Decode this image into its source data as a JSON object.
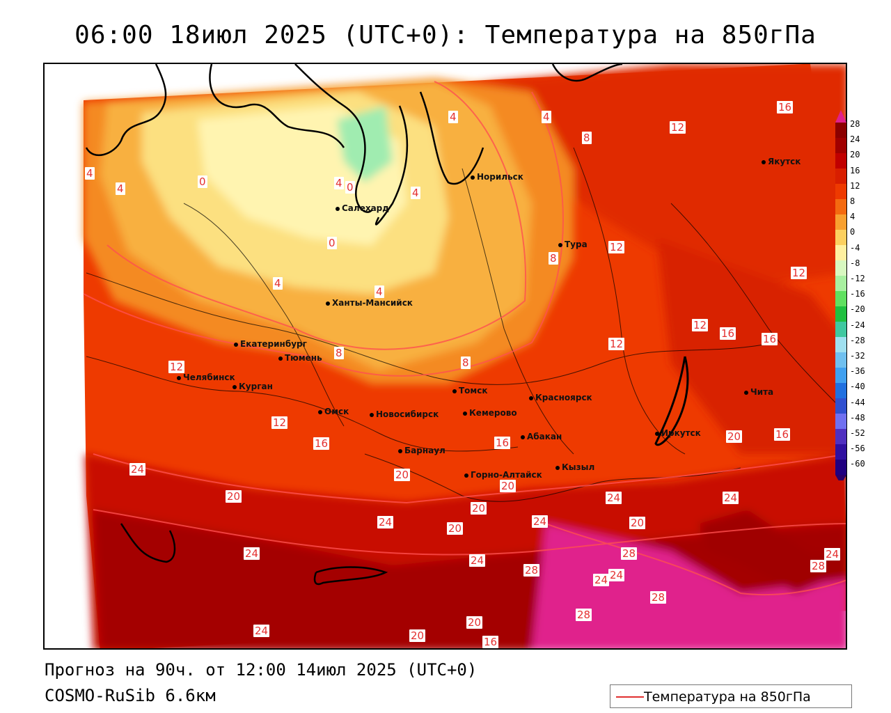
{
  "header": {
    "title": "06:00 18июл 2025 (UTC+0): Температура на 850гПа"
  },
  "footer": {
    "forecast": "Прогноз на 90ч. от 12:00 14июл 2025 (UTC+0)",
    "model": "COSMO-RuSib 6.6км"
  },
  "legend": {
    "label": "Температура на 850гПа",
    "line_color": "#e03030"
  },
  "colorbar": {
    "labels": [
      "28",
      "24",
      "20",
      "16",
      "12",
      "8",
      "4",
      "0",
      "-4",
      "-8",
      "-12",
      "-16",
      "-20",
      "-24",
      "-28",
      "-32",
      "-36",
      "-40",
      "-44",
      "-48",
      "-52",
      "-56",
      "-60"
    ],
    "colors": [
      "#8b0000",
      "#a00000",
      "#c00000",
      "#d81e00",
      "#ee3a00",
      "#f46a10",
      "#f8a030",
      "#fcd060",
      "#fff0a0",
      "#d8f8c0",
      "#a8f0a0",
      "#60e060",
      "#20c040",
      "#40c8a0",
      "#a0e0f0",
      "#70c0f0",
      "#40a0f0",
      "#2070e0",
      "#3050d0",
      "#7070f0",
      "#5030c0",
      "#3010a0",
      "#200080"
    ],
    "top_color": "#e0208c"
  },
  "cities": [
    {
      "name": "Норильск"
    },
    {
      "name": "Якутск"
    },
    {
      "name": "Салехард"
    },
    {
      "name": "Тура"
    },
    {
      "name": "Ханты-Мансийск"
    },
    {
      "name": "Екатеринбург"
    },
    {
      "name": "Тюмень"
    },
    {
      "name": "Челябинск"
    },
    {
      "name": "Курган"
    },
    {
      "name": "Омск"
    },
    {
      "name": "Новосибирск"
    },
    {
      "name": "Томск"
    },
    {
      "name": "Кемерово"
    },
    {
      "name": "Красноярск"
    },
    {
      "name": "Барнаул"
    },
    {
      "name": "Абакан"
    },
    {
      "name": "Горно-Алтайск"
    },
    {
      "name": "Кызыл"
    },
    {
      "name": "Иркутск"
    },
    {
      "name": "Чита"
    }
  ],
  "isotherm_labels": [
    "16",
    "12",
    "4",
    "4",
    "8",
    "0",
    "4",
    "4",
    "0",
    "4",
    "0",
    "4",
    "4",
    "12",
    "8",
    "12",
    "12",
    "4",
    "12",
    "16",
    "16",
    "12",
    "8",
    "8",
    "16",
    "12",
    "16",
    "20",
    "16",
    "20",
    "20",
    "24",
    "20",
    "20",
    "24",
    "24",
    "24",
    "20",
    "24",
    "24",
    "20",
    "28",
    "28",
    "24",
    "24",
    "28",
    "28",
    "28",
    "24",
    "24",
    "20",
    "24",
    "20",
    "16"
  ],
  "map": {
    "projection_note": ""
  }
}
